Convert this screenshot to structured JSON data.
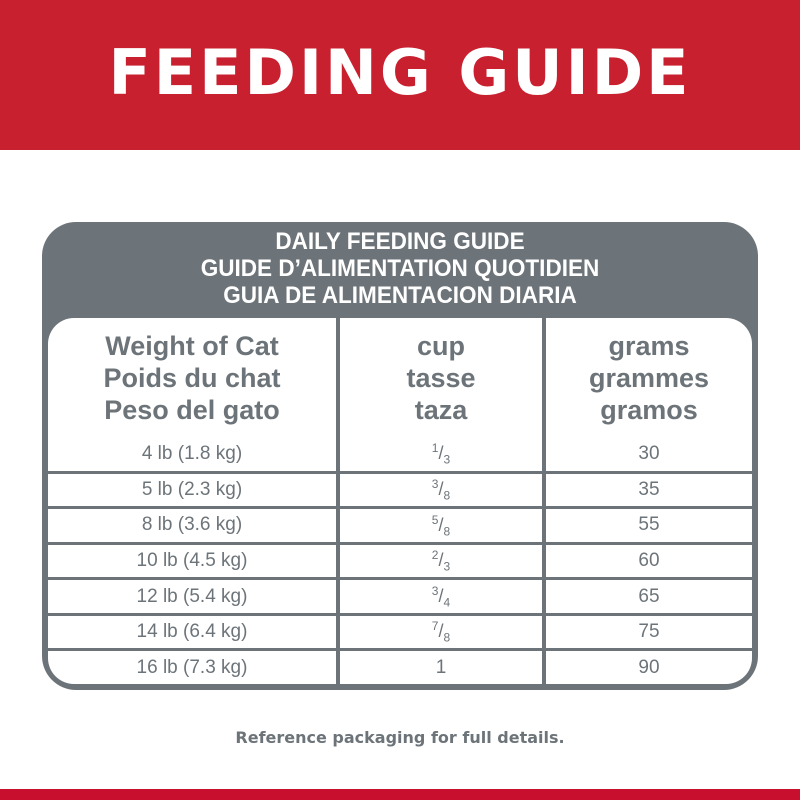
{
  "banner": {
    "title": "FEEDING GUIDE"
  },
  "table": {
    "titles": [
      "DAILY FEEDING GUIDE",
      "GUIDE D’ALIMENTATION QUOTIDIEN",
      "GUIA DE ALIMENTACION DIARIA"
    ],
    "headers": [
      {
        "lines": [
          "Weight of Cat",
          "Poids du chat",
          "Peso del gato"
        ]
      },
      {
        "lines": [
          "cup",
          "tasse",
          "taza"
        ]
      },
      {
        "lines": [
          "grams",
          "grammes",
          "gramos"
        ]
      }
    ],
    "rows": [
      {
        "weight": "4 lb (1.8 kg)",
        "cup_num": "1",
        "cup_den": "3",
        "grams": "30"
      },
      {
        "weight": "5 lb (2.3 kg)",
        "cup_num": "3",
        "cup_den": "8",
        "grams": "35"
      },
      {
        "weight": "8 lb (3.6 kg)",
        "cup_num": "5",
        "cup_den": "8",
        "grams": "55"
      },
      {
        "weight": "10 lb (4.5 kg)",
        "cup_num": "2",
        "cup_den": "3",
        "grams": "60"
      },
      {
        "weight": "12 lb (5.4 kg)",
        "cup_num": "3",
        "cup_den": "4",
        "grams": "65"
      },
      {
        "weight": "14 lb (6.4 kg)",
        "cup_num": "7",
        "cup_den": "8",
        "grams": "75"
      },
      {
        "weight": "16 lb (7.3 kg)",
        "cup": "1",
        "grams": "90"
      }
    ]
  },
  "note": "Reference packaging for full details.",
  "colors": {
    "brand_red": "#c8202f",
    "gray": "#6d7479"
  }
}
